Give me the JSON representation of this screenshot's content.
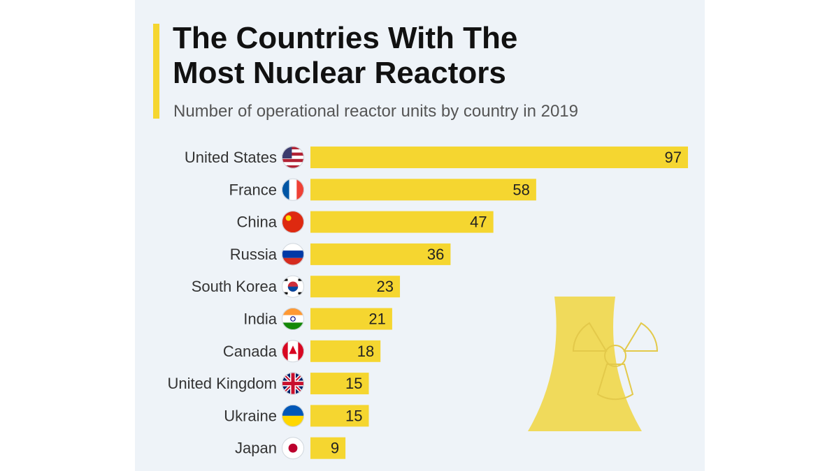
{
  "title": "The Countries With The\nMost Nuclear Reactors",
  "subtitle": "Number of operational reactor units by country in 2019",
  "colors": {
    "bar": "#f5d630",
    "accent": "#f5d630",
    "background": "#eef3f8"
  },
  "chart_data": {
    "type": "bar",
    "orientation": "horizontal",
    "title": "The Countries With The Most Nuclear Reactors",
    "subtitle": "Number of operational reactor units by country in 2019",
    "categories": [
      "United States",
      "France",
      "China",
      "Russia",
      "South Korea",
      "India",
      "Canada",
      "United Kingdom",
      "Ukraine",
      "Japan"
    ],
    "flags": [
      "us-flag-icon",
      "france-flag-icon",
      "china-flag-icon",
      "russia-flag-icon",
      "south-korea-flag-icon",
      "india-flag-icon",
      "canada-flag-icon",
      "uk-flag-icon",
      "ukraine-flag-icon",
      "japan-flag-icon"
    ],
    "values": [
      97,
      58,
      47,
      36,
      23,
      21,
      18,
      15,
      15,
      9
    ],
    "xlim": [
      0,
      97
    ],
    "grid": false,
    "legend": "none",
    "data_labels": "inside-end"
  }
}
